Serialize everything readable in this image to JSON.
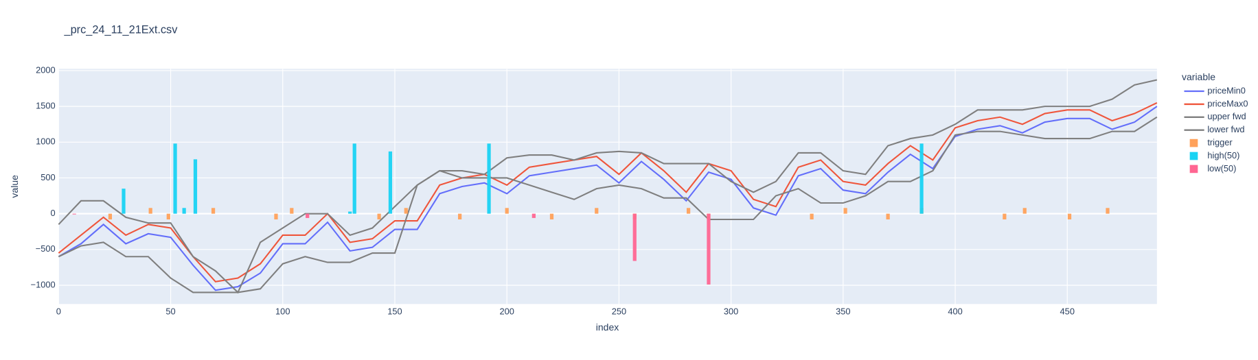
{
  "chart_data": {
    "type": "line",
    "title": "_prc_24_11_21Ext.csv",
    "x_label": "index",
    "y_label": "value",
    "legend_title": "variable",
    "xlim": [
      0,
      490
    ],
    "ylim": [
      -1262,
      2025
    ],
    "xticks": [
      0,
      50,
      100,
      150,
      200,
      250,
      300,
      350,
      400,
      450
    ],
    "yticks": [
      {
        "value": -1000,
        "label": "−1000"
      },
      {
        "value": -500,
        "label": "−500"
      },
      0,
      500,
      1000,
      1500,
      2000
    ],
    "grid": true,
    "legend": "right",
    "x": [
      0,
      10,
      20,
      30,
      40,
      50,
      60,
      70,
      80,
      90,
      100,
      110,
      120,
      130,
      140,
      150,
      160,
      170,
      180,
      190,
      200,
      210,
      220,
      230,
      240,
      250,
      260,
      270,
      280,
      290,
      300,
      310,
      320,
      330,
      340,
      350,
      360,
      370,
      380,
      390,
      400,
      410,
      420,
      430,
      440,
      450,
      460,
      470,
      480,
      490
    ],
    "series": [
      {
        "name": "priceMin0",
        "color": "#636efa",
        "values": [
          -600,
          -420,
          -150,
          -420,
          -280,
          -330,
          -720,
          -1070,
          -1020,
          -830,
          -420,
          -420,
          -120,
          -520,
          -470,
          -220,
          -220,
          280,
          380,
          430,
          280,
          530,
          580,
          630,
          680,
          430,
          730,
          480,
          180,
          580,
          480,
          80,
          -20,
          530,
          630,
          330,
          280,
          580,
          830,
          630,
          1080,
          1180,
          1230,
          1130,
          1280,
          1330,
          1330,
          1180,
          1280,
          1500
        ]
      },
      {
        "name": "priceMax0",
        "color": "#ef553b",
        "values": [
          -550,
          -300,
          -50,
          -300,
          -150,
          -200,
          -600,
          -950,
          -900,
          -700,
          -300,
          -300,
          0,
          -400,
          -350,
          -100,
          -100,
          400,
          500,
          550,
          400,
          650,
          700,
          750,
          800,
          550,
          850,
          600,
          300,
          700,
          600,
          200,
          100,
          650,
          750,
          450,
          400,
          700,
          950,
          750,
          1200,
          1300,
          1350,
          1250,
          1400,
          1450,
          1450,
          1300,
          1400,
          1550
        ]
      },
      {
        "name": "upper fwd",
        "color": "#7f7f7f",
        "values": [
          -150,
          180,
          180,
          -50,
          -130,
          -130,
          -600,
          -800,
          -1100,
          -400,
          -200,
          0,
          0,
          -300,
          -200,
          100,
          400,
          600,
          600,
          550,
          780,
          820,
          820,
          750,
          850,
          870,
          850,
          700,
          700,
          700,
          450,
          300,
          450,
          850,
          850,
          600,
          550,
          950,
          1050,
          1100,
          1250,
          1450,
          1450,
          1450,
          1500,
          1500,
          1500,
          1600,
          1800,
          1870
        ]
      },
      {
        "name": "lower fwd",
        "color": "#7f7f7f",
        "values": [
          -600,
          -450,
          -400,
          -600,
          -600,
          -900,
          -1100,
          -1100,
          -1100,
          -1050,
          -700,
          -600,
          -680,
          -680,
          -550,
          -550,
          400,
          600,
          500,
          500,
          500,
          400,
          300,
          200,
          350,
          400,
          350,
          220,
          220,
          -80,
          -80,
          -80,
          250,
          350,
          150,
          150,
          250,
          450,
          450,
          600,
          1100,
          1150,
          1150,
          1100,
          1050,
          1050,
          1050,
          1150,
          1150,
          1350
        ]
      },
      {
        "name": "trigger",
        "type": "bar",
        "color": "#ffa15a",
        "x": [
          23,
          41,
          49,
          69,
          97,
          104,
          143,
          155,
          179,
          200,
          220,
          240,
          257,
          281,
          290,
          336,
          351,
          370,
          385,
          422,
          431,
          451,
          468
        ],
        "values": [
          -80,
          80,
          -80,
          80,
          -80,
          80,
          -80,
          80,
          -80,
          80,
          -80,
          80,
          -80,
          80,
          -80,
          -80,
          80,
          -80,
          80,
          -80,
          80,
          -80,
          80
        ]
      },
      {
        "name": "high(50)",
        "type": "bar",
        "color": "#19d3f3",
        "x": [
          29,
          52,
          56,
          61,
          130,
          132,
          148,
          192,
          385
        ],
        "values": [
          350,
          980,
          80,
          760,
          30,
          980,
          870,
          980,
          980
        ]
      },
      {
        "name": "low(50)",
        "type": "bar",
        "color": "#ff6692",
        "x": [
          7,
          111,
          212,
          257,
          290
        ],
        "values": [
          -10,
          -60,
          -60,
          -660,
          -990
        ]
      }
    ]
  }
}
